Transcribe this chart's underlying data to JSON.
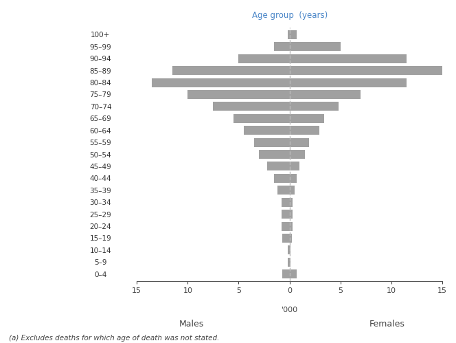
{
  "age_groups": [
    "0–4",
    "5–9",
    "10–14",
    "15–19",
    "20–24",
    "25–29",
    "30–34",
    "35–39",
    "40–44",
    "45–49",
    "50–54",
    "55–59",
    "60–64",
    "65–69",
    "70–74",
    "75–79",
    "80–84",
    "85–89",
    "90–94",
    "95–99",
    "100+"
  ],
  "males": [
    0.7,
    0.2,
    0.2,
    0.7,
    0.8,
    0.8,
    0.8,
    1.2,
    1.5,
    2.2,
    3.0,
    3.5,
    4.5,
    5.5,
    7.5,
    10.0,
    13.5,
    11.5,
    5.0,
    1.5,
    0.2
  ],
  "females": [
    0.7,
    0.1,
    0.1,
    0.2,
    0.3,
    0.3,
    0.3,
    0.5,
    0.7,
    1.0,
    1.5,
    1.9,
    2.9,
    3.4,
    4.8,
    7.0,
    11.5,
    15.0,
    11.5,
    5.0,
    0.7
  ],
  "bar_color": "#a0a0a0",
  "background_color": "#ffffff",
  "age_label": "Age group  (years)",
  "xlabel": "'000",
  "males_label": "Males",
  "females_label": "Females",
  "footnote": "(a) Excludes deaths for which age of death was not stated.",
  "xlim": 15,
  "dashed_line_color": "#bbbbbb",
  "title_color": "#4a86c8"
}
